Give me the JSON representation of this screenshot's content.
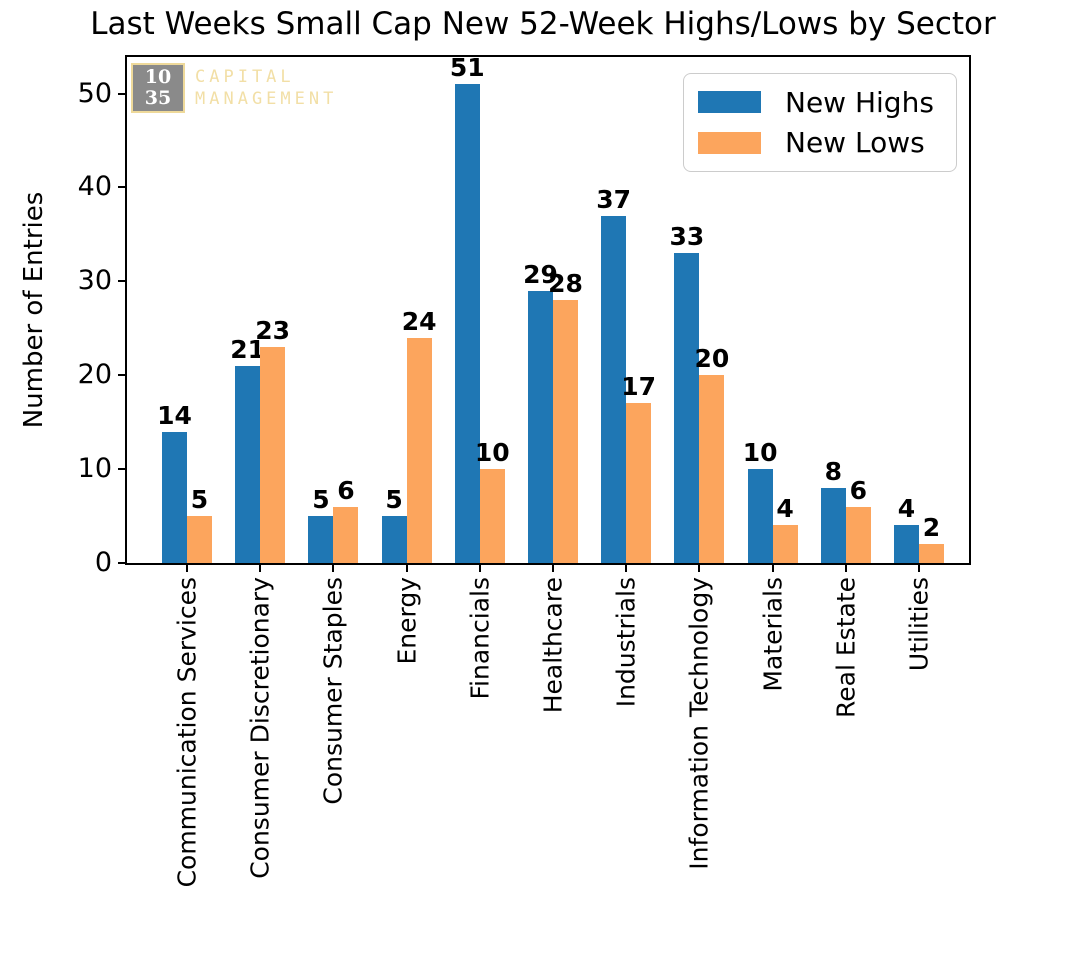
{
  "title": "Last Weeks Small Cap New 52-Week Highs/Lows by Sector",
  "watermark": {
    "box_line1": "10",
    "box_line2": "35",
    "text_line1": "CAPITAL",
    "text_line2": "MANAGEMENT",
    "box_color": "#8a8a8a",
    "accent_color": "#f2dfa6"
  },
  "legend": {
    "position": "upper right",
    "items": [
      {
        "label": "New Highs",
        "color": "#1f77b4"
      },
      {
        "label": "New Lows",
        "color": "#fca55d"
      }
    ]
  },
  "chart_data": {
    "type": "bar",
    "title": "Last Weeks Small Cap New 52-Week Highs/Lows by Sector",
    "categories": [
      "Communication Services",
      "Consumer Discretionary",
      "Consumer Staples",
      "Energy",
      "Financials",
      "Healthcare",
      "Industrials",
      "Information Technology",
      "Materials",
      "Real Estate",
      "Utilities"
    ],
    "series": [
      {
        "name": "New Highs",
        "color": "#1f77b4",
        "values": [
          14,
          21,
          5,
          5,
          51,
          29,
          37,
          33,
          10,
          8,
          4
        ]
      },
      {
        "name": "New Lows",
        "color": "#fca55d",
        "values": [
          5,
          23,
          6,
          24,
          10,
          28,
          17,
          20,
          4,
          6,
          2
        ]
      }
    ],
    "xlabel": "",
    "ylabel": "Number of Entries",
    "yticks": [
      0,
      10,
      20,
      30,
      40,
      50
    ],
    "ylim": [
      0,
      53.9
    ],
    "grid": false,
    "bar_value_labels": true,
    "legend_position": "upper right"
  }
}
